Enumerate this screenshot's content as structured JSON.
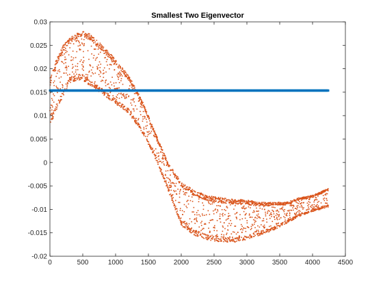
{
  "chart_data": {
    "type": "scatter",
    "title": "Smallest Two Eigenvector",
    "xlabel": "",
    "ylabel": "",
    "xlim": [
      0,
      4500
    ],
    "ylim": [
      -0.02,
      0.03
    ],
    "x_ticks": [
      0,
      500,
      1000,
      1500,
      2000,
      2500,
      3000,
      3500,
      4000,
      4500
    ],
    "x_tick_labels": [
      "0",
      "500",
      "1000",
      "1500",
      "2000",
      "2500",
      "3000",
      "3500",
      "4000",
      "4500"
    ],
    "y_ticks": [
      -0.02,
      -0.015,
      -0.01,
      -0.005,
      0,
      0.005,
      0.01,
      0.015,
      0.02,
      0.025,
      0.03
    ],
    "y_tick_labels": [
      "-0.02",
      "-0.015",
      "-0.01",
      "-0.005",
      "0",
      "0.005",
      "0.01",
      "0.015",
      "0.02",
      "0.025",
      "0.03"
    ],
    "grid": false,
    "n_points": 4240,
    "series": [
      {
        "color": "#0072BD",
        "marker": "dot",
        "x_range": [
          1,
          4240
        ],
        "constant_value": 0.01535
      },
      {
        "color": "#D95319",
        "marker": "dot",
        "x_range": [
          1,
          4240
        ],
        "trend": {
          "x": [
            0,
            100,
            200,
            300,
            400,
            500,
            600,
            800,
            1000,
            1200,
            1400,
            1600,
            1800,
            2000,
            2200,
            2400,
            2600,
            2800,
            3000,
            3200,
            3400,
            3600,
            3800,
            4000,
            4240
          ],
          "upper": [
            0.018,
            0.022,
            0.025,
            0.0265,
            0.0275,
            0.028,
            0.0275,
            0.025,
            0.022,
            0.0185,
            0.0135,
            0.0065,
            0.0,
            -0.004,
            -0.006,
            -0.007,
            -0.0075,
            -0.0078,
            -0.008,
            -0.0085,
            -0.0085,
            -0.0085,
            -0.0075,
            -0.007,
            -0.0055
          ],
          "lower": [
            0.008,
            0.011,
            0.014,
            0.017,
            0.0175,
            0.0175,
            0.0165,
            0.0145,
            0.0125,
            0.0105,
            0.0065,
            0.001,
            -0.006,
            -0.0135,
            -0.0155,
            -0.0165,
            -0.017,
            -0.017,
            -0.0165,
            -0.0155,
            -0.0145,
            -0.013,
            -0.0115,
            -0.0105,
            -0.0095
          ]
        }
      }
    ]
  }
}
